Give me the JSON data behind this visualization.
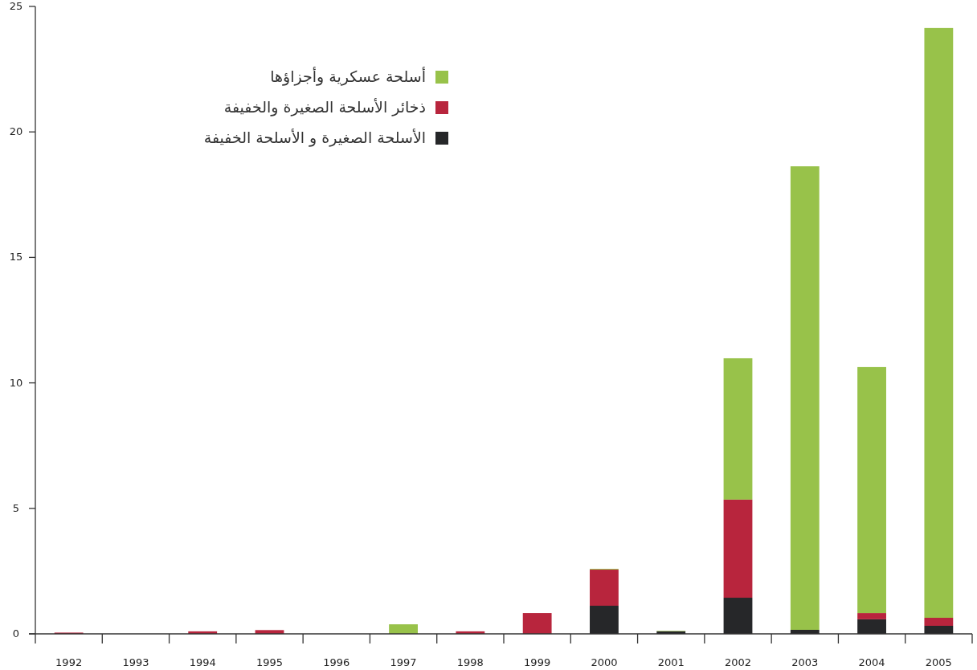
{
  "chart_data": {
    "type": "bar",
    "stacked": true,
    "categories": [
      "1992",
      "1993",
      "1994",
      "1995",
      "1996",
      "1997",
      "1998",
      "1999",
      "2000",
      "2001",
      "2002",
      "2003",
      "2004",
      "2005"
    ],
    "series": [
      {
        "name": "الأسلحة الصغيرة و الأسلحة الخفيفة",
        "color": "#262729",
        "values": [
          0,
          0,
          0,
          0,
          0,
          0,
          null,
          null,
          1.12,
          0.1,
          1.44,
          0.16,
          0.58,
          0.32
        ]
      },
      {
        "name": "ذخائر الأسلحة الصغيرة والخفيفة",
        "color": "#b8253d",
        "values": [
          0.05,
          0,
          0.1,
          0.15,
          0,
          0,
          0.1,
          0.83,
          1.44,
          0,
          3.91,
          0,
          0.25,
          0.32
        ]
      },
      {
        "name": "أسلحة عسكرية وأجزاؤها",
        "color": "#98c24a",
        "values": [
          0,
          0,
          0,
          0,
          0,
          0.38,
          0,
          0,
          0.03,
          0.02,
          5.63,
          18.47,
          9.8,
          23.5
        ]
      }
    ],
    "ylim": [
      0,
      25
    ],
    "yticks": [
      0,
      5,
      10,
      15,
      20,
      25
    ],
    "grid": false,
    "legend": "top left"
  }
}
